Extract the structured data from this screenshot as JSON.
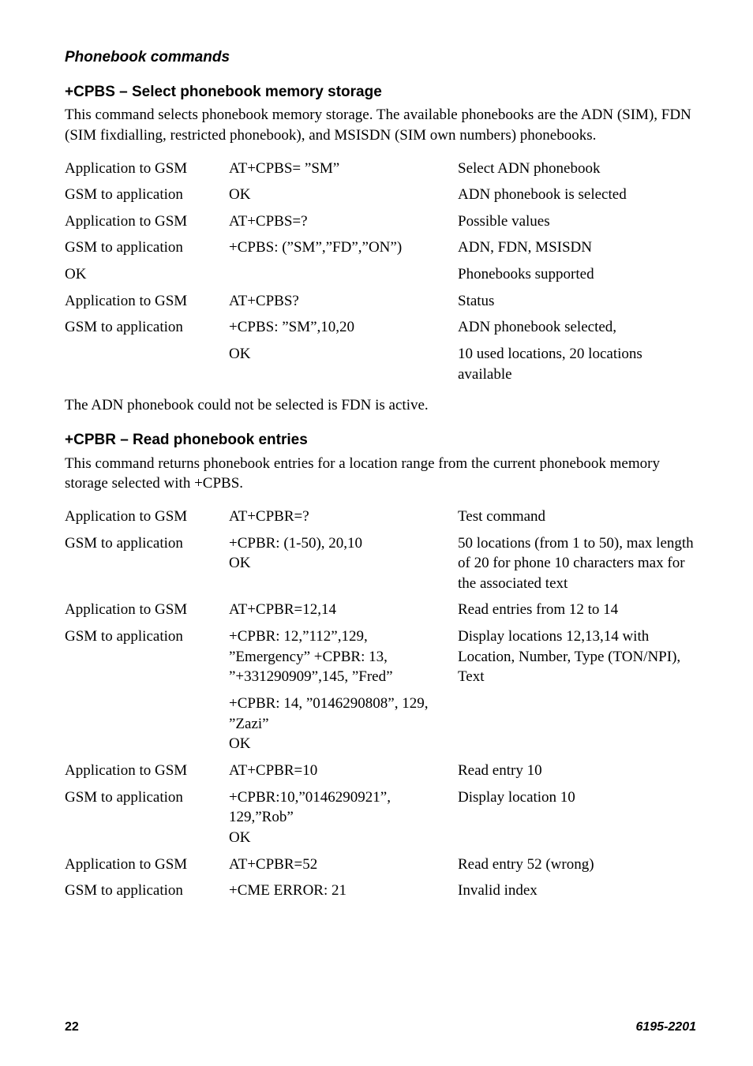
{
  "page": {
    "section_title": "Phonebook commands",
    "footer_page": "22",
    "footer_doc": "6195-2201"
  },
  "cpbs": {
    "title": "+CPBS – Select phonebook memory storage",
    "intro": "This command selects phonebook memory storage. The available phonebooks are the ADN (SIM), FDN (SIM fixdialling, restricted phonebook), and MSISDN (SIM own numbers) phonebooks.",
    "rows": [
      {
        "c1": "Application to GSM",
        "c2": "AT+CPBS= ”SM”",
        "c3": "Select ADN phonebook"
      },
      {
        "c1": "GSM to application",
        "c2": "OK",
        "c3": "ADN phonebook is selected"
      },
      {
        "c1": "Application to GSM",
        "c2": "AT+CPBS=?",
        "c3": "Possible values"
      },
      {
        "c1": "GSM to application",
        "c2": "+CPBS: (”SM”,”FD”,”ON”)",
        "c3": "ADN, FDN, MSISDN"
      },
      {
        "c1": "OK",
        "c2": "",
        "c3": "Phonebooks supported"
      },
      {
        "c1": "Application to GSM",
        "c2": "AT+CPBS?",
        "c3": "Status"
      },
      {
        "c1": "GSM to application",
        "c2": "+CPBS: ”SM”,10,20",
        "c3": "ADN phonebook selected,"
      },
      {
        "c1": "",
        "c2": "OK",
        "c3": "10 used locations, 20 locations available"
      }
    ],
    "note": "The ADN phonebook could not be selected is FDN is active."
  },
  "cpbr": {
    "title": "+CPBR – Read phonebook entries",
    "intro": "This command returns phonebook entries for a location range from the current phonebook memory storage selected with +CPBS.",
    "rows": [
      {
        "c1": "Application to GSM",
        "c2": "AT+CPBR=?",
        "c3": "Test command"
      },
      {
        "c1": "GSM to application",
        "c2": "+CPBR: (1-50), 20,10\nOK",
        "c3": "50 locations (from 1 to 50), max length of 20 for phone 10 characters max for the associated text"
      },
      {
        "c1": "Application to GSM",
        "c2": "AT+CPBR=12,14",
        "c3": "Read entries from 12 to 14"
      },
      {
        "c1": "GSM to application",
        "c2": "+CPBR: 12,”112”,129, ”Emergency” +CPBR: 13, ”+331290909”,145, ”Fred”",
        "c3": "Display locations 12,13,14 with Location, Number, Type (TON/NPI), Text"
      },
      {
        "c1": "",
        "c2": "+CPBR: 14, ”0146290808”, 129, ”Zazi”\nOK",
        "c3": ""
      },
      {
        "c1": "Application to GSM",
        "c2": "AT+CPBR=10",
        "c3": "Read entry 10"
      },
      {
        "c1": "GSM to application",
        "c2": "+CPBR:10,”0146290921”, 129,”Rob”\nOK",
        "c3": "Display location 10"
      },
      {
        "c1": "Application to GSM",
        "c2": "AT+CPBR=52",
        "c3": "Read entry 52 (wrong)"
      },
      {
        "c1": "GSM to application",
        "c2": "+CME ERROR: 21",
        "c3": "Invalid index"
      }
    ]
  }
}
